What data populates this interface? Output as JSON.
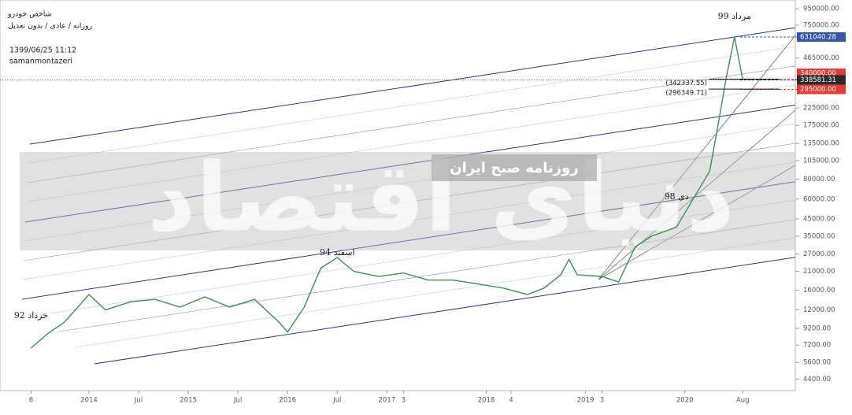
{
  "header": {
    "title": "شاخص خودرو",
    "subtitle": "روزانه / عادی / بدون تعدیل",
    "datetime": "1399/06/25 11:12",
    "author": "samanmontazeri"
  },
  "watermark": {
    "main": "دنیای اقتصاد",
    "sub": "روزنامه صبح ایران"
  },
  "chart_data": {
    "type": "line",
    "log_scale": true,
    "color": "#3f8f55",
    "x": [
      "2013-06",
      "2013-08",
      "2013-10",
      "2014-01",
      "2014-03",
      "2014-06",
      "2014-09",
      "2014-12",
      "2015-03",
      "2015-06",
      "2015-09",
      "2015-12",
      "2016-01",
      "2016-03",
      "2016-05",
      "2016-07",
      "2016-09",
      "2016-12",
      "2017-03",
      "2017-06",
      "2017-09",
      "2017-12",
      "2018-03",
      "2018-06",
      "2018-08",
      "2018-10",
      "2018-11",
      "2018-12",
      "2019-03",
      "2019-05",
      "2019-07",
      "2019-09",
      "2019-12",
      "2020-02",
      "2020-04",
      "2020-05",
      "2020-06",
      "2020-07",
      "2020-08"
    ],
    "values": [
      6900,
      8500,
      10000,
      15000,
      12000,
      13500,
      14000,
      12500,
      14500,
      12500,
      14000,
      10000,
      8700,
      12500,
      22000,
      25700,
      21000,
      19500,
      20500,
      18500,
      18500,
      17500,
      16500,
      15000,
      16500,
      20000,
      25000,
      20000,
      19500,
      18000,
      30000,
      35000,
      40000,
      60000,
      90000,
      175000,
      350000,
      631040,
      338581
    ],
    "ylim": [
      3720,
      1080000
    ],
    "yticks": [
      {
        "value": 950000,
        "label": "950000.00"
      },
      {
        "value": 750000,
        "label": "750000.00"
      },
      {
        "value": 465000,
        "label": "465000.00"
      },
      {
        "value": 225000,
        "label": "225000.00"
      },
      {
        "value": 175000,
        "label": "175000.00"
      },
      {
        "value": 135000,
        "label": "135000.00"
      },
      {
        "value": 105000,
        "label": "105000.00"
      },
      {
        "value": 80000,
        "label": "80000.00"
      },
      {
        "value": 60000,
        "label": "60000.00"
      },
      {
        "value": 45000,
        "label": "45000.00"
      },
      {
        "value": 35000,
        "label": "35000.00"
      },
      {
        "value": 27000,
        "label": "27000.00"
      },
      {
        "value": 21000,
        "label": "21000.00"
      },
      {
        "value": 16000,
        "label": "16000.00"
      },
      {
        "value": 12000,
        "label": "12000.00"
      },
      {
        "value": 9200,
        "label": "9200.00"
      },
      {
        "value": 7200,
        "label": "7200.00"
      },
      {
        "value": 5600,
        "label": "5600.00"
      },
      {
        "value": 4400,
        "label": "4400.00"
      }
    ],
    "xticks": [
      {
        "value": "2013-06",
        "label": "6"
      },
      {
        "value": "2014-01",
        "label": "2014"
      },
      {
        "value": "2014-07",
        "label": "Jul"
      },
      {
        "value": "2015-01",
        "label": "2015"
      },
      {
        "value": "2015-07",
        "label": "Jul"
      },
      {
        "value": "2016-01",
        "label": "2016"
      },
      {
        "value": "2016-07",
        "label": "Jul"
      },
      {
        "value": "2017-01",
        "label": "2017"
      },
      {
        "value": "2017-03",
        "label": "3"
      },
      {
        "value": "2018-01",
        "label": "2018"
      },
      {
        "value": "2018-04",
        "label": "4"
      },
      {
        "value": "2019-01",
        "label": "2019"
      },
      {
        "value": "2019-03",
        "label": "3"
      },
      {
        "value": "2020-01",
        "label": "2020"
      },
      {
        "value": "2020-08",
        "label": "Aug"
      }
    ],
    "price_tags": [
      {
        "value": 631040.28,
        "label": "631040.28",
        "color": "#3656a8"
      },
      {
        "value": 340000,
        "label": "340000.00",
        "color": "#e53935"
      },
      {
        "value": 338581.31,
        "label": "338581.31",
        "color": "#2b2b2b"
      },
      {
        "value": 295000,
        "label": "295000.00",
        "color": "#e53935"
      }
    ],
    "level_labels": [
      {
        "value": 342337.55,
        "label": "(342337.55)"
      },
      {
        "value": 296349.71,
        "label": "(296349.71)"
      }
    ],
    "annotations": [
      {
        "x": "2013-06",
        "value": 11000,
        "text": "خرداد 92"
      },
      {
        "x": "2016-07",
        "value": 27500,
        "text": "اسفند 94"
      },
      {
        "x": "2019-12",
        "value": 62000,
        "text": "دی 98"
      },
      {
        "x": "2020-07",
        "value": 850000,
        "text": "مرداد 99"
      }
    ]
  }
}
